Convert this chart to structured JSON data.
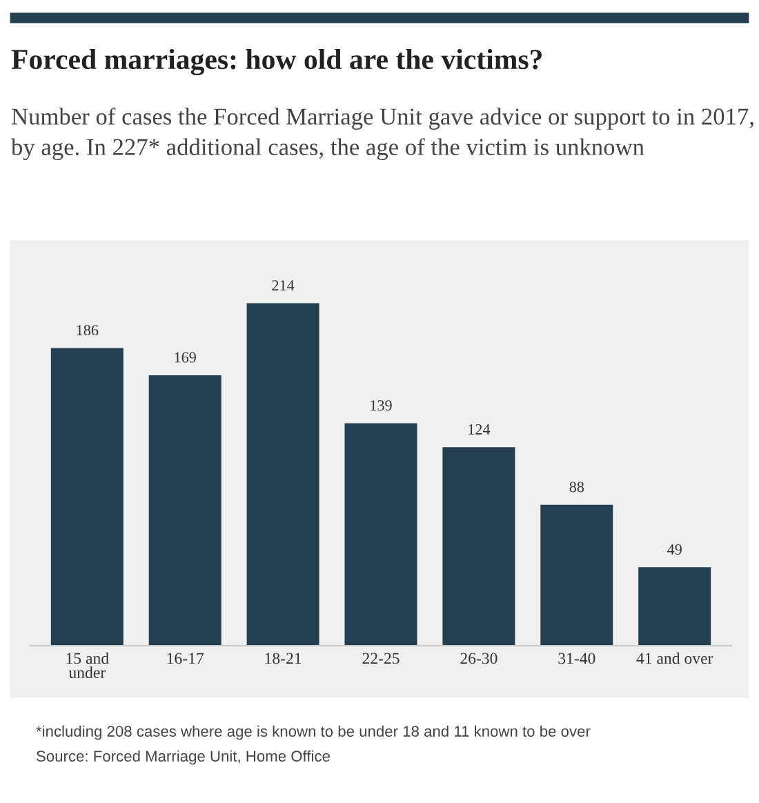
{
  "chart_data": {
    "type": "bar",
    "title": "Forced marriages: how old are the victims?",
    "subtitle": "Number of cases the Forced Marriage Unit gave advice or support to in 2017, by age. In 227* additional cases, the age of the victim is unknown",
    "categories": [
      "15 and\nunder",
      "16-17",
      "18-21",
      "22-25",
      "26-30",
      "31-40",
      "41 and over"
    ],
    "values": [
      186,
      169,
      214,
      139,
      124,
      88,
      49
    ],
    "color": "#233f51",
    "data_labels": true,
    "annotations": [
      "*including 208 cases where age is known to be under 18 and 11 known to be over",
      "Source: Forced Marriage Unit, Home Office"
    ]
  }
}
